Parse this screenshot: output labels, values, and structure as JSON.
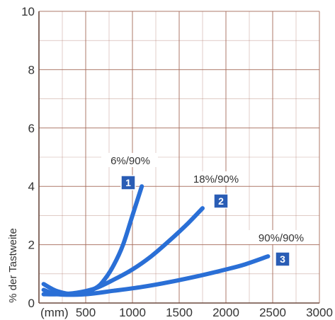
{
  "chart_data": {
    "type": "line",
    "ylabel": "% der Tastweite",
    "xunit": "(mm)",
    "xlim": [
      0,
      3000
    ],
    "ylim": [
      0,
      10
    ],
    "xticks": [
      500,
      1000,
      1500,
      2000,
      2500,
      3000
    ],
    "yticks": [
      0,
      2,
      4,
      6,
      8,
      10
    ],
    "grid": true,
    "colors": {
      "curve": "#2a6fd6",
      "grid": "#a56a5a",
      "badge": "#2a5db5"
    },
    "series": [
      {
        "name": "6%/90%",
        "badge": "1",
        "x": [
          50,
          200,
          400,
          600,
          700,
          800,
          900,
          1000,
          1100
        ],
        "y": [
          0.65,
          0.4,
          0.3,
          0.5,
          0.8,
          1.3,
          2.0,
          3.0,
          4.0
        ]
      },
      {
        "name": "18%/90%",
        "badge": "2",
        "x": [
          50,
          200,
          400,
          600,
          800,
          1000,
          1200,
          1400,
          1600,
          1750
        ],
        "y": [
          0.3,
          0.3,
          0.35,
          0.5,
          0.8,
          1.15,
          1.6,
          2.15,
          2.75,
          3.25
        ]
      },
      {
        "name": "90%/90%",
        "badge": "3",
        "x": [
          50,
          200,
          500,
          800,
          1100,
          1400,
          1700,
          2000,
          2200,
          2450
        ],
        "y": [
          0.45,
          0.3,
          0.3,
          0.42,
          0.55,
          0.72,
          0.92,
          1.15,
          1.32,
          1.6
        ]
      }
    ]
  }
}
